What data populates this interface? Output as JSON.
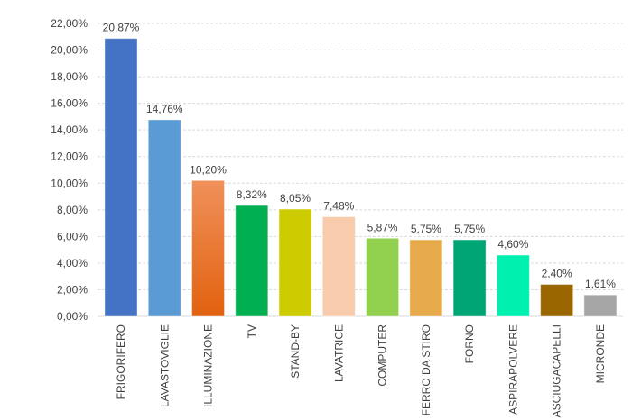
{
  "chart_data": {
    "type": "bar",
    "title": "",
    "xlabel": "",
    "ylabel": "",
    "ylim": [
      0,
      22
    ],
    "yticks": [
      0,
      2,
      4,
      6,
      8,
      10,
      12,
      14,
      16,
      18,
      20,
      22
    ],
    "ytick_labels": [
      "0,00%",
      "2,00%",
      "4,00%",
      "6,00%",
      "8,00%",
      "10,00%",
      "12,00%",
      "14,00%",
      "16,00%",
      "18,00%",
      "20,00%",
      "22,00%"
    ],
    "grid": true,
    "categories": [
      "FRIGORIFERO",
      "LAVASTOVIGLIE",
      "ILLUMINAZIONE",
      "TV",
      "STAND-BY",
      "LAVATRICE",
      "COMPUTER",
      "FERRO DA STIRO",
      "FORNO",
      "ASPIRAPOLVERE",
      "ASCIUGACAPELLI",
      "MICRONDE"
    ],
    "values": [
      20.87,
      14.76,
      10.2,
      8.32,
      8.05,
      7.48,
      5.87,
      5.75,
      5.75,
      4.6,
      2.4,
      1.61
    ],
    "data_labels": [
      "20,87%",
      "14,76%",
      "10,20%",
      "8,32%",
      "8,05%",
      "7,48%",
      "5,87%",
      "5,75%",
      "5,75%",
      "4,60%",
      "2,40%",
      "1,61%"
    ],
    "colors": [
      "#4472C4",
      "#5B9BD5",
      "#ED7D31",
      "#00B050",
      "#CCCC00",
      "#F8CBAD",
      "#92D050",
      "#E6AA4A",
      "#00A575",
      "#00F0B0",
      "#996600",
      "#A6A6A6"
    ]
  }
}
